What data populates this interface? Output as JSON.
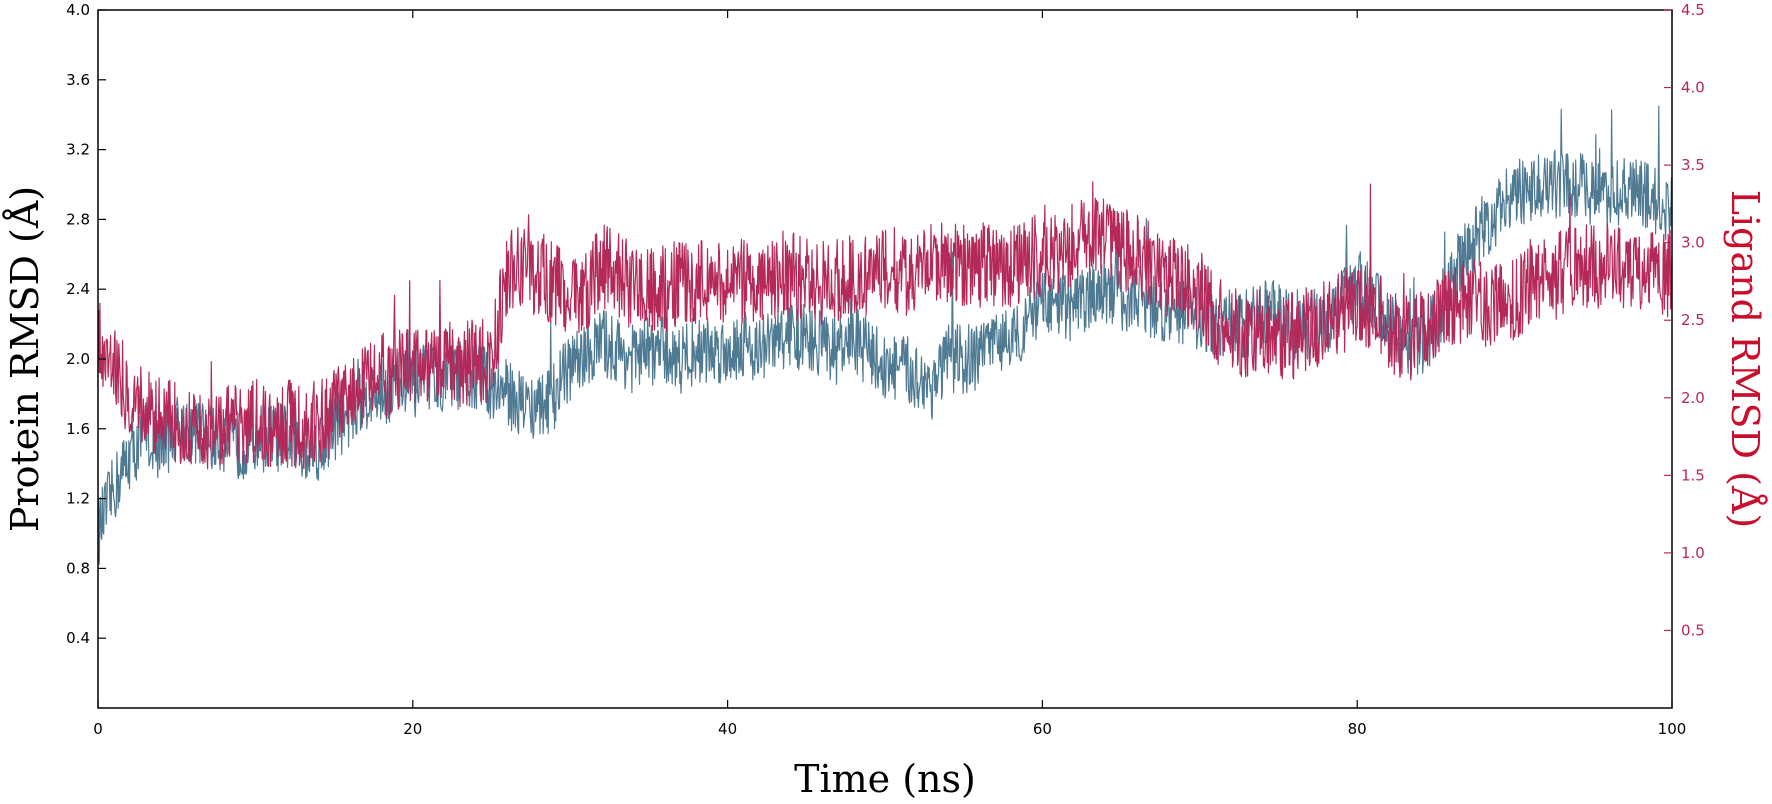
{
  "chart_data": {
    "type": "line",
    "title": "",
    "xlabel": "Time (ns)",
    "ylabel": "Protein RMSD (Å)",
    "y2label": "Ligand RMSD (Å)",
    "xlim": [
      0,
      100
    ],
    "ylim": [
      0,
      4.0
    ],
    "y2lim": [
      0,
      4.5
    ],
    "x_ticks": [
      0,
      20,
      40,
      60,
      80,
      100
    ],
    "x_tick_labels": [
      "0",
      "20",
      "40",
      "60",
      "80",
      "100"
    ],
    "y_ticks": [
      0.4,
      0.8,
      1.2,
      1.6,
      2.0,
      2.4,
      2.8,
      3.2,
      3.6,
      4.0
    ],
    "y_tick_labels": [
      "0.4",
      "0.8",
      "1.2",
      "1.6",
      "2.0",
      "2.4",
      "2.8",
      "3.2",
      "3.6",
      "4.0"
    ],
    "y2_ticks": [
      0.5,
      1.0,
      1.5,
      2.0,
      2.5,
      3.0,
      3.5,
      4.0,
      4.5
    ],
    "y2_tick_labels": [
      "0.5",
      "1.0",
      "1.5",
      "2.0",
      "2.5",
      "3.0",
      "3.5",
      "4.0",
      "4.5"
    ],
    "grid": false,
    "legend": "none",
    "colors": {
      "protein": "#4f7a93",
      "ligand": "#b5295a",
      "ligand_axis": "#b5295a",
      "ligand_title": "#c8102e",
      "axis": "#000000"
    },
    "series": [
      {
        "axis": "left",
        "x": [
          0,
          1,
          2,
          3,
          4,
          5,
          6,
          7,
          8,
          9,
          10,
          11,
          12,
          13,
          14,
          15,
          16,
          17,
          18,
          19,
          20,
          21,
          22,
          23,
          24,
          25,
          26,
          27,
          28,
          29,
          30,
          31,
          32,
          33,
          34,
          35,
          36,
          37,
          38,
          39,
          40,
          41,
          42,
          43,
          44,
          45,
          46,
          47,
          48,
          49,
          50,
          51,
          52,
          53,
          54,
          55,
          56,
          57,
          58,
          59,
          60,
          61,
          62,
          63,
          64,
          65,
          66,
          67,
          68,
          69,
          70,
          71,
          72,
          73,
          74,
          75,
          76,
          77,
          78,
          79,
          80,
          81,
          82,
          83,
          84,
          85,
          86,
          87,
          88,
          89,
          90,
          91,
          92,
          93,
          94,
          95,
          96,
          97,
          98,
          99,
          100
        ],
        "y": [
          1.0,
          1.25,
          1.45,
          1.55,
          1.5,
          1.6,
          1.6,
          1.55,
          1.55,
          1.5,
          1.55,
          1.55,
          1.55,
          1.5,
          1.5,
          1.6,
          1.7,
          1.8,
          1.8,
          1.85,
          1.85,
          1.9,
          1.9,
          1.9,
          1.9,
          1.85,
          1.8,
          1.75,
          1.7,
          1.8,
          1.95,
          2.0,
          2.1,
          2.05,
          2.0,
          2.05,
          2.05,
          2.0,
          2.05,
          2.05,
          2.05,
          2.1,
          2.05,
          2.1,
          2.15,
          2.1,
          2.1,
          2.05,
          2.1,
          2.05,
          1.95,
          1.95,
          1.9,
          1.85,
          2.0,
          2.0,
          2.0,
          2.1,
          2.15,
          2.2,
          2.3,
          2.3,
          2.3,
          2.35,
          2.4,
          2.35,
          2.35,
          2.3,
          2.3,
          2.25,
          2.25,
          2.2,
          2.2,
          2.2,
          2.25,
          2.25,
          2.2,
          2.2,
          2.2,
          2.4,
          2.4,
          2.35,
          2.2,
          2.1,
          2.1,
          2.2,
          2.5,
          2.6,
          2.75,
          2.85,
          2.95,
          2.95,
          3.0,
          3.0,
          3.0,
          2.95,
          2.95,
          2.95,
          2.95,
          2.9,
          2.85
        ]
      },
      {
        "axis": "right",
        "x": [
          0,
          1,
          2,
          3,
          4,
          5,
          6,
          7,
          8,
          9,
          10,
          11,
          12,
          13,
          14,
          15,
          16,
          17,
          18,
          19,
          20,
          21,
          22,
          23,
          24,
          25,
          26,
          27,
          28,
          29,
          30,
          31,
          32,
          33,
          34,
          35,
          36,
          37,
          38,
          39,
          40,
          41,
          42,
          43,
          44,
          45,
          46,
          47,
          48,
          49,
          50,
          51,
          52,
          53,
          54,
          55,
          56,
          57,
          58,
          59,
          60,
          61,
          62,
          63,
          64,
          65,
          66,
          67,
          68,
          69,
          70,
          71,
          72,
          73,
          74,
          75,
          76,
          77,
          78,
          79,
          80,
          81,
          82,
          83,
          84,
          85,
          86,
          87,
          88,
          89,
          90,
          91,
          92,
          93,
          94,
          95,
          96,
          97,
          98,
          99,
          100
        ],
        "y": [
          2.4,
          2.25,
          2.0,
          1.95,
          1.85,
          1.85,
          1.85,
          1.8,
          1.85,
          1.8,
          1.85,
          1.8,
          1.85,
          1.8,
          1.85,
          1.9,
          2.0,
          2.1,
          2.15,
          2.15,
          2.2,
          2.2,
          2.25,
          2.2,
          2.25,
          2.25,
          2.8,
          2.85,
          2.8,
          2.75,
          2.65,
          2.7,
          2.85,
          2.8,
          2.7,
          2.7,
          2.7,
          2.75,
          2.75,
          2.75,
          2.75,
          2.75,
          2.75,
          2.8,
          2.8,
          2.75,
          2.75,
          2.75,
          2.8,
          2.8,
          2.85,
          2.8,
          2.8,
          2.85,
          2.85,
          2.85,
          2.85,
          2.85,
          2.85,
          2.9,
          2.9,
          2.95,
          3.0,
          3.0,
          3.05,
          2.95,
          2.9,
          2.85,
          2.8,
          2.75,
          2.7,
          2.5,
          2.45,
          2.4,
          2.45,
          2.4,
          2.4,
          2.45,
          2.5,
          2.55,
          2.6,
          2.6,
          2.45,
          2.35,
          2.4,
          2.5,
          2.6,
          2.65,
          2.6,
          2.6,
          2.65,
          2.7,
          2.75,
          2.8,
          2.85,
          2.85,
          2.85,
          2.85,
          2.85,
          2.8,
          2.8
        ]
      }
    ]
  }
}
